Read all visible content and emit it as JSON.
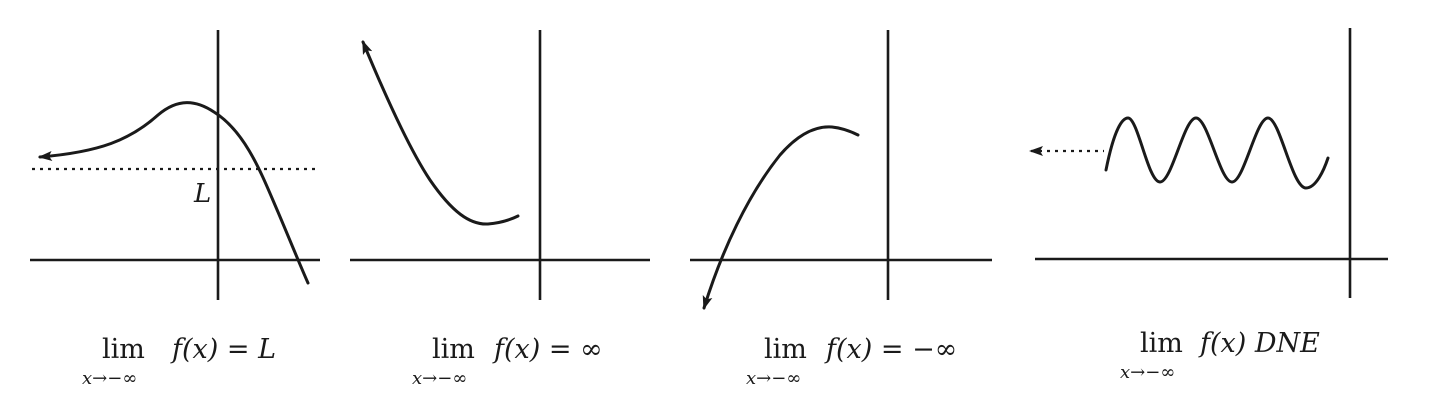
{
  "panels": [
    {
      "id": "limit-finite",
      "curve_label": "L",
      "caption": {
        "lim": "lim",
        "expr": "f(x) = L",
        "sub": "x→−∞"
      }
    },
    {
      "id": "limit-pos-inf",
      "caption": {
        "lim": "lim",
        "expr": "f(x) = ∞",
        "sub": "x→−∞"
      }
    },
    {
      "id": "limit-neg-inf",
      "caption": {
        "lim": "lim",
        "expr": "f(x) = −∞",
        "sub": "x→−∞"
      }
    },
    {
      "id": "limit-dne",
      "caption": {
        "lim": "lim",
        "expr": "f(x) DNE",
        "sub": "x→−∞"
      }
    }
  ],
  "colors": {
    "ink": "#1a1a1a",
    "background": "#ffffff"
  }
}
